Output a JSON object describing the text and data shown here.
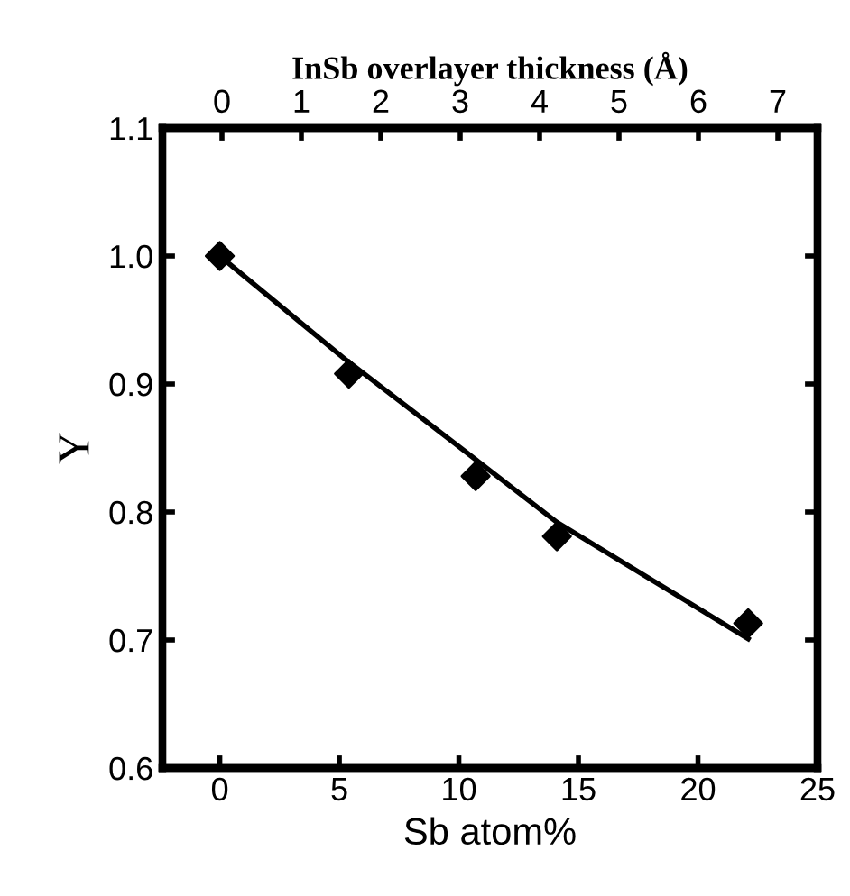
{
  "chart_data": {
    "type": "scatter",
    "xlabel": "Sb atom%",
    "ylabel": "Y",
    "x2label": "InSb overlayer thickness (Å)",
    "xlim": [
      -2.4,
      25
    ],
    "xticks": [
      0,
      5,
      10,
      15,
      20,
      25
    ],
    "ylim": [
      0.6,
      1.1
    ],
    "yticks": [
      {
        "value": 0.6,
        "label": "0.6"
      },
      {
        "value": 0.7,
        "label": "0.7"
      },
      {
        "value": 0.8,
        "label": "0.8"
      },
      {
        "value": 0.9,
        "label": "0.9"
      },
      {
        "value": 1.0,
        "label": "1.0"
      },
      {
        "value": 1.1,
        "label": "1.1"
      }
    ],
    "x2lim": [
      -0.75,
      7.5
    ],
    "x2ticks": [
      0,
      1,
      2,
      3,
      4,
      5,
      6,
      7
    ],
    "grid": false,
    "legend": false,
    "series": [
      {
        "color": "#000000",
        "marker": "diamond",
        "x": [
          0,
          5.4,
          10.7,
          14.1,
          22.1
        ],
        "values": [
          1.0,
          0.908,
          0.828,
          0.781,
          0.713
        ]
      },
      {
        "type": "line",
        "color": "#000000",
        "marker": "none",
        "line_style": "solid",
        "x": [
          0,
          5.2,
          10.7,
          14.1,
          22.1
        ],
        "values": [
          1.0,
          0.92,
          0.841,
          0.792,
          0.701
        ]
      }
    ]
  }
}
